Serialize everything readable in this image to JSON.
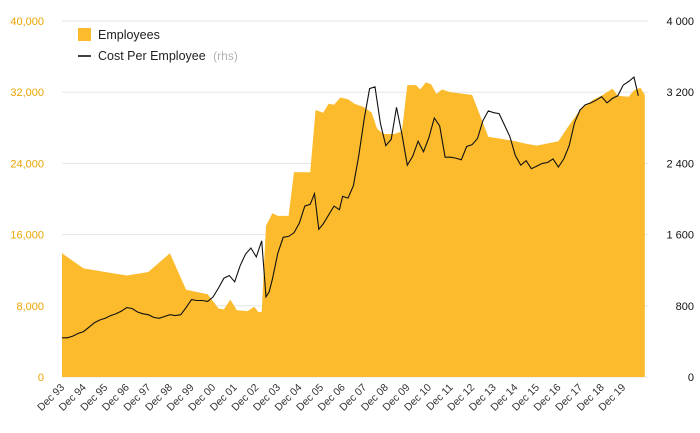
{
  "chart_data": {
    "type": "area",
    "x_categories": [
      "Dec 93",
      "Dec 94",
      "Dec 95",
      "Dec 96",
      "Dec 97",
      "Dec 98",
      "Dec 99",
      "Dec 00",
      "Dec 01",
      "Dec 02",
      "Dec 03",
      "Dec 04",
      "Dec 05",
      "Dec 06",
      "Dec 07",
      "Dec 08",
      "Dec 09",
      "Dec 10",
      "Dec 11",
      "Dec 12",
      "Dec 13",
      "Dec 14",
      "Dec 15",
      "Dec 16",
      "Dec 17",
      "Dec 18",
      "Dec 19"
    ],
    "x_range": [
      1993.0,
      2020.15
    ],
    "y_left": {
      "range": [
        0,
        40000
      ],
      "ticks": [
        0,
        8000,
        16000,
        24000,
        32000,
        40000
      ],
      "tick_labels": [
        "0",
        "8,000",
        "16,000",
        "24,000",
        "32,000",
        "40,000"
      ],
      "color": "#e8a400"
    },
    "y_right": {
      "range": [
        0,
        4000
      ],
      "ticks": [
        0,
        800,
        1600,
        2400,
        3200,
        4000
      ],
      "tick_labels": [
        "0",
        "800",
        "1 600",
        "2 400",
        "3 200",
        "4 000"
      ],
      "color": "#111111"
    },
    "grid": true,
    "legend": {
      "placement": "top-left",
      "items": [
        {
          "label": "Employees",
          "type": "area",
          "color": "#fbbb2d"
        },
        {
          "label": "Cost Per Employee",
          "note": "(rhs)",
          "type": "line",
          "color": "#111111"
        }
      ]
    },
    "series": [
      {
        "name": "Employees",
        "type": "area",
        "axis": "left",
        "color": "#fbbb2d",
        "points": [
          [
            1993.0,
            13900
          ],
          [
            1994.0,
            12200
          ],
          [
            1995.0,
            11800
          ],
          [
            1996.0,
            11400
          ],
          [
            1997.0,
            11800
          ],
          [
            1998.0,
            13900
          ],
          [
            1998.75,
            9800
          ],
          [
            1999.75,
            9300
          ],
          [
            2000.25,
            7700
          ],
          [
            2000.5,
            7600
          ],
          [
            2000.8,
            8700
          ],
          [
            2001.1,
            7500
          ],
          [
            2001.6,
            7400
          ],
          [
            2001.9,
            7900
          ],
          [
            2002.1,
            7300
          ],
          [
            2002.25,
            7300
          ],
          [
            2002.45,
            17000
          ],
          [
            2002.75,
            18400
          ],
          [
            2003.0,
            18100
          ],
          [
            2003.5,
            18100
          ],
          [
            2003.75,
            23000
          ],
          [
            2004.5,
            23000
          ],
          [
            2004.75,
            30000
          ],
          [
            2005.1,
            29700
          ],
          [
            2005.35,
            30700
          ],
          [
            2005.6,
            30600
          ],
          [
            2005.9,
            31400
          ],
          [
            2006.25,
            31200
          ],
          [
            2006.55,
            30700
          ],
          [
            2007.0,
            30300
          ],
          [
            2007.35,
            29700
          ],
          [
            2007.6,
            27900
          ],
          [
            2007.9,
            27300
          ],
          [
            2008.4,
            27300
          ],
          [
            2008.75,
            27600
          ],
          [
            2009.0,
            32800
          ],
          [
            2009.4,
            32800
          ],
          [
            2009.6,
            32300
          ],
          [
            2009.85,
            33100
          ],
          [
            2010.1,
            32900
          ],
          [
            2010.35,
            31800
          ],
          [
            2010.6,
            32300
          ],
          [
            2011.0,
            32000
          ],
          [
            2012.0,
            31700
          ],
          [
            2012.75,
            27000
          ],
          [
            2014.0,
            26500
          ],
          [
            2014.5,
            26200
          ],
          [
            2015.0,
            26000
          ],
          [
            2016.0,
            26500
          ],
          [
            2016.5,
            28300
          ],
          [
            2017.0,
            30000
          ],
          [
            2017.35,
            30700
          ],
          [
            2017.65,
            31200
          ],
          [
            2018.0,
            31600
          ],
          [
            2018.5,
            32400
          ],
          [
            2018.75,
            31600
          ],
          [
            2019.25,
            31500
          ],
          [
            2019.5,
            32200
          ],
          [
            2019.8,
            32500
          ],
          [
            2020.0,
            31700
          ]
        ]
      },
      {
        "name": "Cost Per Employee",
        "type": "line",
        "axis": "right",
        "color": "#111111",
        "points": [
          [
            1993.0,
            440
          ],
          [
            1993.25,
            440
          ],
          [
            1993.5,
            460
          ],
          [
            1993.75,
            490
          ],
          [
            1994.0,
            510
          ],
          [
            1994.25,
            560
          ],
          [
            1994.5,
            610
          ],
          [
            1994.75,
            640
          ],
          [
            1995.0,
            660
          ],
          [
            1995.25,
            690
          ],
          [
            1995.5,
            710
          ],
          [
            1995.75,
            740
          ],
          [
            1996.0,
            780
          ],
          [
            1996.25,
            770
          ],
          [
            1996.5,
            730
          ],
          [
            1996.75,
            710
          ],
          [
            1997.0,
            700
          ],
          [
            1997.25,
            670
          ],
          [
            1997.5,
            660
          ],
          [
            1997.75,
            680
          ],
          [
            1998.0,
            700
          ],
          [
            1998.25,
            690
          ],
          [
            1998.5,
            700
          ],
          [
            1998.75,
            780
          ],
          [
            1999.0,
            870
          ],
          [
            1999.25,
            860
          ],
          [
            1999.5,
            860
          ],
          [
            1999.75,
            850
          ],
          [
            2000.0,
            900
          ],
          [
            2000.25,
            1000
          ],
          [
            2000.5,
            1110
          ],
          [
            2000.75,
            1140
          ],
          [
            2001.0,
            1070
          ],
          [
            2001.25,
            1250
          ],
          [
            2001.5,
            1380
          ],
          [
            2001.75,
            1450
          ],
          [
            2002.0,
            1350
          ],
          [
            2002.25,
            1530
          ],
          [
            2002.45,
            900
          ],
          [
            2002.6,
            960
          ],
          [
            2002.75,
            1100
          ],
          [
            2003.0,
            1390
          ],
          [
            2003.25,
            1570
          ],
          [
            2003.5,
            1580
          ],
          [
            2003.75,
            1620
          ],
          [
            2004.0,
            1730
          ],
          [
            2004.25,
            1920
          ],
          [
            2004.5,
            1940
          ],
          [
            2004.7,
            2060
          ],
          [
            2004.9,
            1660
          ],
          [
            2005.1,
            1720
          ],
          [
            2005.35,
            1820
          ],
          [
            2005.6,
            1920
          ],
          [
            2005.85,
            1880
          ],
          [
            2006.0,
            2030
          ],
          [
            2006.25,
            2010
          ],
          [
            2006.5,
            2150
          ],
          [
            2006.75,
            2490
          ],
          [
            2007.0,
            2900
          ],
          [
            2007.25,
            3240
          ],
          [
            2007.5,
            3260
          ],
          [
            2007.75,
            2850
          ],
          [
            2008.0,
            2600
          ],
          [
            2008.25,
            2670
          ],
          [
            2008.5,
            3030
          ],
          [
            2008.75,
            2730
          ],
          [
            2009.0,
            2380
          ],
          [
            2009.25,
            2480
          ],
          [
            2009.5,
            2650
          ],
          [
            2009.75,
            2530
          ],
          [
            2010.0,
            2690
          ],
          [
            2010.25,
            2910
          ],
          [
            2010.5,
            2820
          ],
          [
            2010.75,
            2470
          ],
          [
            2011.0,
            2470
          ],
          [
            2011.25,
            2460
          ],
          [
            2011.5,
            2440
          ],
          [
            2011.75,
            2590
          ],
          [
            2012.0,
            2610
          ],
          [
            2012.25,
            2680
          ],
          [
            2012.5,
            2880
          ],
          [
            2012.75,
            2990
          ],
          [
            2013.0,
            2970
          ],
          [
            2013.25,
            2960
          ],
          [
            2013.5,
            2830
          ],
          [
            2013.75,
            2700
          ],
          [
            2014.0,
            2490
          ],
          [
            2014.25,
            2380
          ],
          [
            2014.5,
            2430
          ],
          [
            2014.75,
            2340
          ],
          [
            2015.0,
            2370
          ],
          [
            2015.25,
            2400
          ],
          [
            2015.5,
            2410
          ],
          [
            2015.75,
            2450
          ],
          [
            2016.0,
            2360
          ],
          [
            2016.25,
            2450
          ],
          [
            2016.5,
            2600
          ],
          [
            2016.75,
            2860
          ],
          [
            2017.0,
            3000
          ],
          [
            2017.25,
            3060
          ],
          [
            2017.5,
            3080
          ],
          [
            2017.75,
            3110
          ],
          [
            2018.0,
            3150
          ],
          [
            2018.25,
            3080
          ],
          [
            2018.5,
            3130
          ],
          [
            2018.75,
            3160
          ],
          [
            2019.0,
            3280
          ],
          [
            2019.25,
            3320
          ],
          [
            2019.5,
            3370
          ],
          [
            2019.7,
            3160
          ]
        ]
      }
    ]
  }
}
